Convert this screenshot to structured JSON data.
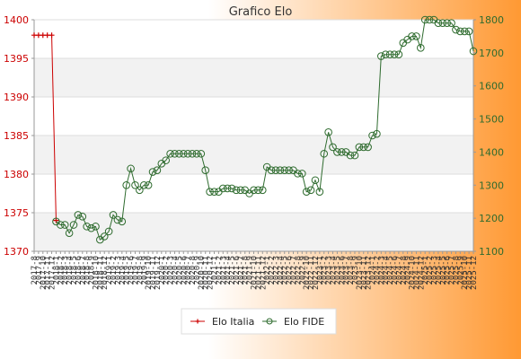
{
  "chart_data": {
    "type": "line",
    "title": "Grafico Elo",
    "left_axis": {
      "min": 1370,
      "max": 1400,
      "ticks": [
        1370,
        1375,
        1380,
        1385,
        1390,
        1395,
        1400
      ],
      "color": "#cc0000"
    },
    "right_axis": {
      "min": 1100,
      "max": 1800,
      "ticks": [
        1100,
        1200,
        1300,
        1400,
        1500,
        1600,
        1700,
        1800
      ],
      "color": "#2e6b2e"
    },
    "grid": true,
    "background_gradient": [
      "#ffffff",
      "#ff9933"
    ],
    "legend_position": "bottom-center",
    "x": [
      "2017-8",
      "2017-9",
      "2017-10",
      "2017-11",
      "2017-12",
      "2018-1",
      "2018-2",
      "2018-3",
      "2018-4",
      "2018-5",
      "2018-6",
      "2018-7",
      "2018-8",
      "2018-9",
      "2018-10",
      "2018-11",
      "2018-12",
      "2019-1",
      "2019-2",
      "2019-3",
      "2019-4",
      "2019-5",
      "2019-6",
      "2019-7",
      "2019-8",
      "2019-9",
      "2019-10",
      "2019-11",
      "2019-12",
      "2020-1",
      "2020-2",
      "2020-3",
      "2020-4",
      "2020-5",
      "2020-6",
      "2020-7",
      "2020-8",
      "2020-9",
      "2020-10",
      "2020-11",
      "2020-12",
      "2021-1",
      "2021-2",
      "2021-3",
      "2021-4",
      "2021-5",
      "2021-6",
      "2021-7",
      "2021-8",
      "2021-9",
      "2021-10",
      "2021-11",
      "2021-12",
      "2022-1",
      "2022-2",
      "2022-3",
      "2022-4",
      "2022-5",
      "2022-6",
      "2022-7",
      "2022-8",
      "2022-9",
      "2022-10",
      "2022-11",
      "2022-12",
      "2023-1",
      "2023-2",
      "2023-3",
      "2023-4",
      "2023-5",
      "2023-6",
      "2023-7",
      "2023-8",
      "2023-9",
      "2023-10",
      "2023-11",
      "2023-12",
      "2024-1",
      "2024-2",
      "2024-3",
      "2024-4",
      "2024-5",
      "2024-6",
      "2024-7",
      "2024-8",
      "2024-9",
      "2024-10",
      "2024-11",
      "2024-12",
      "2025-1",
      "2025-2",
      "2025-3",
      "2025-4",
      "2025-5",
      "2025-6",
      "2025-7",
      "2025-8",
      "2025-9",
      "2025-10",
      "2025-11",
      "2025-12"
    ],
    "series": [
      {
        "name": "Elo Italia",
        "axis": "left",
        "color": "#cc0000",
        "marker": "+",
        "values": [
          1398,
          1398,
          1398,
          1398,
          1398,
          1374,
          null,
          null,
          null,
          null,
          null,
          null,
          null,
          null,
          null,
          null,
          null,
          null,
          null,
          null,
          null,
          null,
          null,
          null,
          null,
          null,
          null,
          null,
          null,
          null,
          null,
          null,
          null,
          null,
          null,
          null,
          null,
          null,
          null,
          null,
          null,
          null,
          null,
          null,
          null,
          null,
          null,
          null,
          null,
          null,
          null,
          null,
          null,
          null,
          null,
          null,
          null,
          null,
          null,
          null,
          null,
          null,
          null,
          null,
          null,
          null,
          null,
          null,
          null,
          null,
          null,
          null,
          null,
          null,
          null,
          null,
          null,
          null,
          null,
          null,
          null,
          null,
          null,
          null,
          null,
          null,
          null,
          null,
          null,
          null,
          null,
          null,
          null,
          null,
          null,
          null,
          null,
          null,
          null,
          null,
          null
        ]
      },
      {
        "name": "Elo FIDE",
        "axis": "right",
        "color": "#2e6b2e",
        "marker": "o",
        "values": [
          null,
          null,
          null,
          null,
          null,
          1190,
          1180,
          1180,
          1155,
          1180,
          1210,
          1205,
          1175,
          1170,
          1175,
          1135,
          1145,
          1160,
          1210,
          1195,
          1190,
          1300,
          1350,
          1300,
          1285,
          1300,
          1300,
          1340,
          1345,
          1365,
          1375,
          1395,
          1395,
          1395,
          1395,
          1395,
          1395,
          1395,
          1395,
          1345,
          1280,
          1280,
          1280,
          1290,
          1290,
          1290,
          1285,
          1285,
          1285,
          1275,
          1285,
          1285,
          1285,
          1355,
          1345,
          1345,
          1345,
          1345,
          1345,
          1345,
          1335,
          1335,
          1280,
          1285,
          1315,
          1280,
          1395,
          1460,
          1415,
          1400,
          1400,
          1400,
          1390,
          1390,
          1415,
          1415,
          1415,
          1450,
          1455,
          1690,
          1695,
          1695,
          1695,
          1695,
          1730,
          1740,
          1750,
          1750,
          1715,
          1800,
          1800,
          1800,
          1790,
          1790,
          1790,
          1790,
          1770,
          1765,
          1765,
          1765,
          1705
        ]
      }
    ]
  }
}
